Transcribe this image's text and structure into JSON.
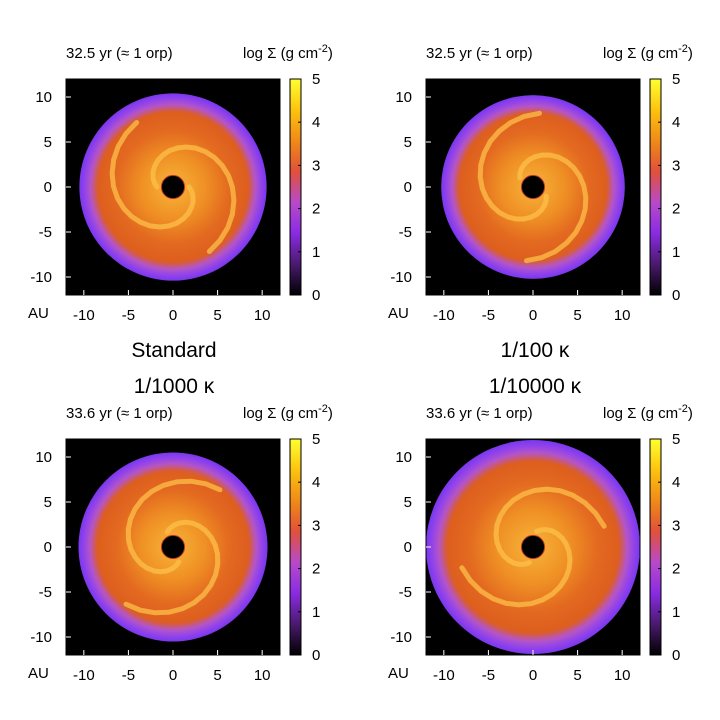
{
  "figure": {
    "captions": [
      "Standard",
      "1/100 κ",
      "1/1000 κ",
      "1/10000 κ"
    ]
  },
  "colorbar": {
    "label": "log Σ (g cm",
    "label_exponent": "-2",
    "label_close": ")",
    "range": [
      0,
      5
    ],
    "ticks": [
      "0",
      "1",
      "2",
      "3",
      "4",
      "5"
    ],
    "colors": [
      "#000000",
      "#4a1a6e",
      "#8a2be2",
      "#b84ac8",
      "#e0503a",
      "#f08a18",
      "#fcc30f",
      "#ffff30"
    ]
  },
  "axes": {
    "xlim": [
      -12,
      12
    ],
    "ylim": [
      -12,
      12
    ],
    "xticks": [
      "-10",
      "-5",
      "0",
      "5",
      "10"
    ],
    "yticks": [
      "10",
      "5",
      "0",
      "-5",
      "-10"
    ],
    "unit_label": "AU"
  },
  "chart_data": [
    {
      "type": "heatmap",
      "time_label": "32.5 yr (≈ 1 orp)",
      "caption": "Standard",
      "disk_outer_radius_AU": 10.5,
      "inner_hole_radius_AU": 1.3,
      "colorbar_range": [
        0,
        5
      ]
    },
    {
      "type": "heatmap",
      "time_label": "32.5 yr (≈ 1 orp)",
      "caption": "1/100 κ",
      "disk_outer_radius_AU": 10.3,
      "inner_hole_radius_AU": 1.3,
      "colorbar_range": [
        0,
        5
      ]
    },
    {
      "type": "heatmap",
      "time_label": "33.6 yr (≈ 1 orp)",
      "caption": "1/1000 κ",
      "disk_outer_radius_AU": 10.6,
      "inner_hole_radius_AU": 1.3,
      "colorbar_range": [
        0,
        5
      ]
    },
    {
      "type": "heatmap",
      "time_label": "33.6 yr (≈ 1 orp)",
      "caption": "1/10000 κ",
      "disk_outer_radius_AU": 12.0,
      "inner_hole_radius_AU": 1.3,
      "colorbar_range": [
        0,
        5
      ]
    }
  ]
}
